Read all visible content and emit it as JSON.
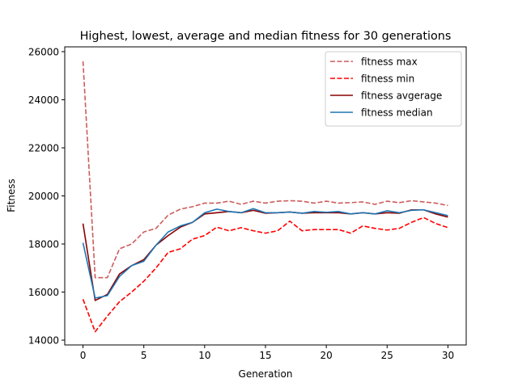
{
  "chart_data": {
    "type": "line",
    "title": "Highest, lowest, average and median fitness for 30 generations",
    "xlabel": "Generation",
    "ylabel": "Fitness",
    "xlim": [
      -1.5,
      31.5
    ],
    "ylim": [
      13800,
      26200
    ],
    "xticks": [
      0,
      5,
      10,
      15,
      20,
      25,
      30
    ],
    "yticks": [
      14000,
      16000,
      18000,
      20000,
      22000,
      24000,
      26000
    ],
    "grid": false,
    "legend_position": "top-right",
    "x": [
      0,
      1,
      2,
      3,
      4,
      5,
      6,
      7,
      8,
      9,
      10,
      11,
      12,
      13,
      14,
      15,
      16,
      17,
      18,
      19,
      20,
      21,
      22,
      23,
      24,
      25,
      26,
      27,
      28,
      29,
      30
    ],
    "series": [
      {
        "name": "fitness max",
        "style": "dashed",
        "color": "#cd5c5c",
        "values": [
          25600,
          16600,
          16600,
          17800,
          18000,
          18500,
          18650,
          19200,
          19450,
          19550,
          19700,
          19700,
          19780,
          19650,
          19780,
          19700,
          19780,
          19800,
          19780,
          19700,
          19780,
          19700,
          19720,
          19750,
          19650,
          19780,
          19720,
          19800,
          19750,
          19700,
          19600
        ]
      },
      {
        "name": "fitness min",
        "style": "dashed",
        "color": "#ff0000",
        "values": [
          15700,
          14350,
          15000,
          15600,
          16000,
          16450,
          17000,
          17650,
          17800,
          18200,
          18350,
          18700,
          18550,
          18680,
          18550,
          18450,
          18550,
          18950,
          18550,
          18600,
          18600,
          18600,
          18450,
          18750,
          18650,
          18580,
          18650,
          18900,
          19100,
          18850,
          18680
        ]
      },
      {
        "name": "fitness avgerage",
        "style": "solid",
        "color": "#8b0000",
        "values": [
          18850,
          15650,
          15900,
          16750,
          17100,
          17350,
          17950,
          18350,
          18700,
          18900,
          19250,
          19300,
          19350,
          19300,
          19400,
          19280,
          19300,
          19330,
          19280,
          19300,
          19300,
          19300,
          19250,
          19300,
          19250,
          19300,
          19280,
          19420,
          19420,
          19250,
          19120
        ]
      },
      {
        "name": "fitness median",
        "style": "solid",
        "color": "#1f77b4",
        "values": [
          18050,
          15750,
          15850,
          16650,
          17100,
          17280,
          17950,
          18500,
          18750,
          18900,
          19300,
          19450,
          19350,
          19300,
          19470,
          19300,
          19300,
          19330,
          19280,
          19350,
          19320,
          19350,
          19250,
          19300,
          19250,
          19380,
          19300,
          19400,
          19420,
          19300,
          19180
        ]
      }
    ]
  }
}
